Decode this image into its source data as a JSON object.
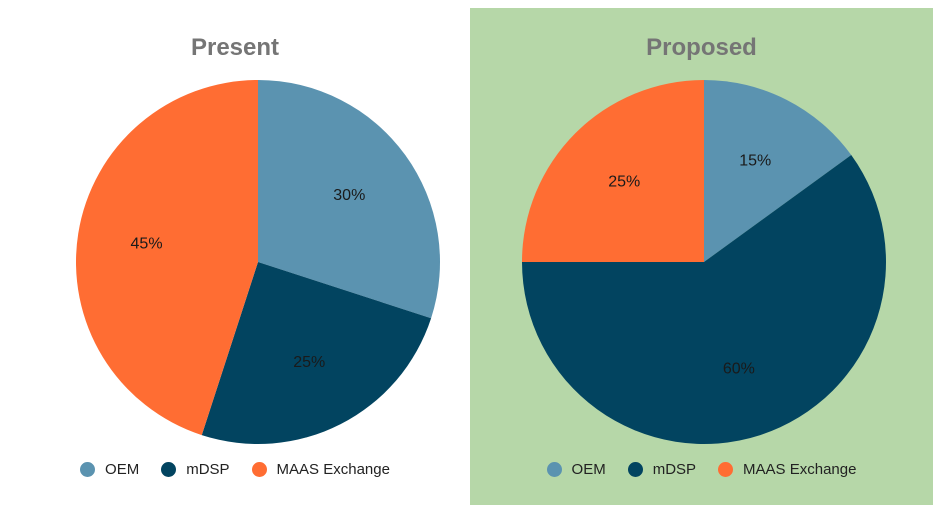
{
  "chart_data": [
    {
      "type": "pie",
      "title": "Present",
      "categories": [
        "OEM",
        "mDSP",
        "MAAS Exchange"
      ],
      "values": [
        30,
        25,
        45
      ],
      "labels": [
        "30%",
        "25%",
        "45%"
      ],
      "colors": [
        "#5b93b0",
        "#024460",
        "#ff6d33"
      ],
      "legend": "bottom",
      "background": "#ffffff"
    },
    {
      "type": "pie",
      "title": "Proposed",
      "categories": [
        "OEM",
        "mDSP",
        "MAAS Exchange"
      ],
      "values": [
        15,
        60,
        25
      ],
      "labels": [
        "15%",
        "60%",
        "25%"
      ],
      "colors": [
        "#5b93b0",
        "#024460",
        "#ff6d33"
      ],
      "legend": "bottom",
      "background": "#b6d7a8"
    }
  ]
}
